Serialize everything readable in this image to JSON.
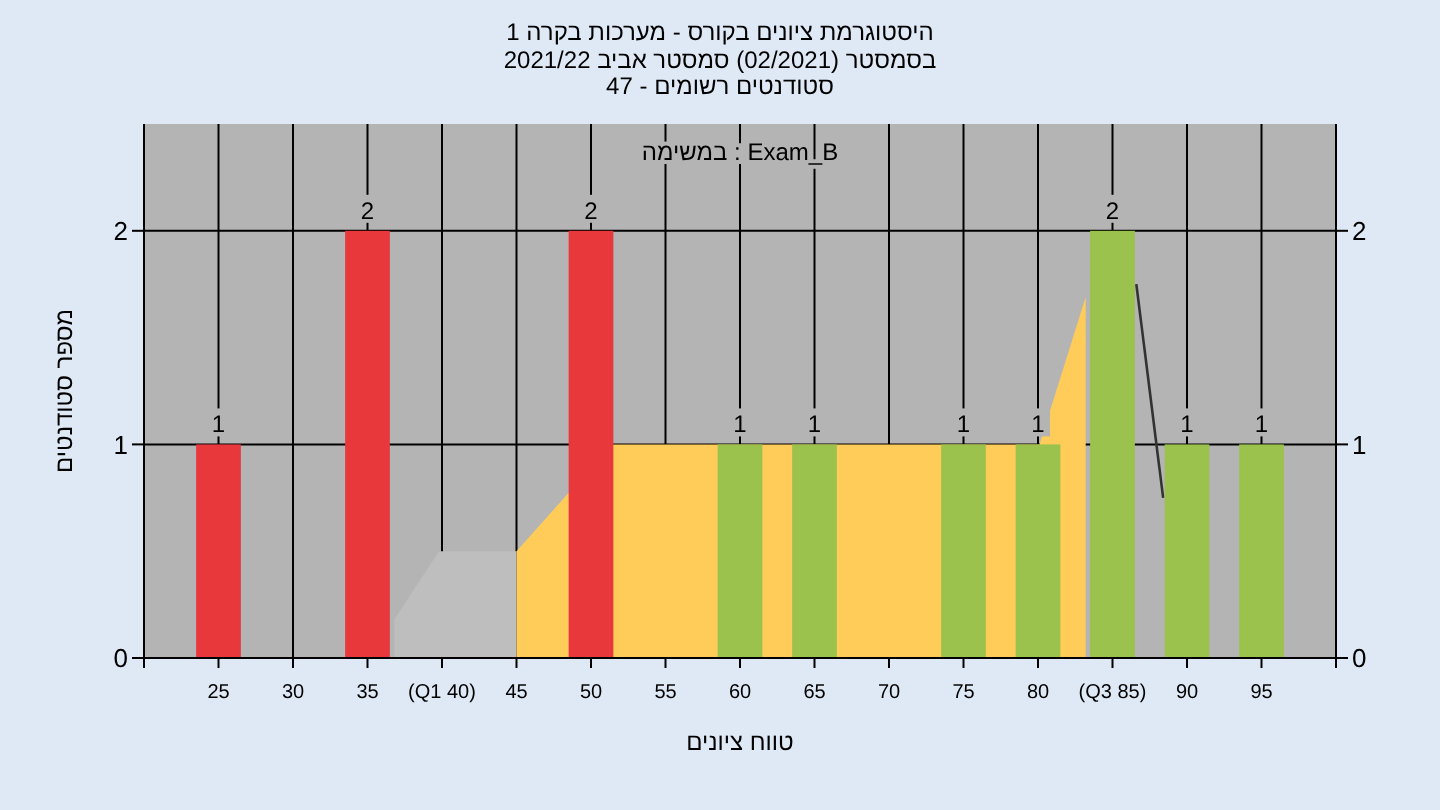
{
  "chart_data": {
    "type": "bar",
    "title": "היסטוגרמת ציונים בקורס - מערכות בקרה 1",
    "subtitle": "בסמסטר  (02/2021)  סמסטר אביב 2021/22\nסטודנטים רשומים - 47",
    "xlabel": "טווח ציונים",
    "ylabel": "מספר סטודנטים",
    "annotations": [
      "במשימה : Exam_B"
    ],
    "xlim": [
      20,
      100
    ],
    "xticks": [
      {
        "value": 20,
        "label": null
      },
      {
        "value": 25,
        "label": "25"
      },
      {
        "value": 30,
        "label": "30"
      },
      {
        "value": 35,
        "label": "35"
      },
      {
        "value": 40,
        "label": "(Q1 40)"
      },
      {
        "value": 45,
        "label": "45"
      },
      {
        "value": 50,
        "label": "50"
      },
      {
        "value": 55,
        "label": "55"
      },
      {
        "value": 60,
        "label": "60"
      },
      {
        "value": 65,
        "label": "65"
      },
      {
        "value": 70,
        "label": "70"
      },
      {
        "value": 75,
        "label": "75"
      },
      {
        "value": 80,
        "label": "80"
      },
      {
        "value": 85,
        "label": "(Q3 85)"
      },
      {
        "value": 90,
        "label": "90"
      },
      {
        "value": 95,
        "label": "95"
      },
      {
        "value": 100,
        "label": null
      }
    ],
    "ylim": [
      0,
      2.5
    ],
    "yticks": [
      0,
      1,
      2
    ],
    "y2lim": [
      0,
      2.5
    ],
    "y2ticks": [
      0,
      1,
      2
    ],
    "grid": true,
    "series": [
      {
        "type": "area",
        "color": "#bebebe",
        "x": [
          36.8,
          39.8,
          45
        ],
        "values": [
          0.18,
          0.5,
          0.5
        ]
      },
      {
        "type": "area",
        "color": "#ffcc5a",
        "x": [
          45,
          51.4,
          80.1,
          83.2
        ],
        "values": [
          0.5,
          1,
          1,
          1.69
        ]
      },
      {
        "type": "line",
        "color": "#333333",
        "x": [
          86.6,
          88.4
        ],
        "values": [
          1.75,
          0.75
        ]
      },
      {
        "x": [
          25,
          35,
          50,
          60,
          65,
          75,
          80,
          85,
          90,
          95
        ],
        "values": [
          1,
          2,
          2,
          1,
          1,
          1,
          1,
          2,
          1,
          1
        ],
        "value_labels": [
          "1",
          "2",
          "2",
          "1",
          "1",
          "1",
          "1",
          "2",
          "1",
          "1"
        ],
        "colors": [
          "#e8383c",
          "#e8383c",
          "#e8383c",
          "#9cc24e",
          "#9cc24e",
          "#9cc24e",
          "#9cc24e",
          "#9cc24e",
          "#9cc24e",
          "#9cc24e"
        ]
      }
    ]
  }
}
